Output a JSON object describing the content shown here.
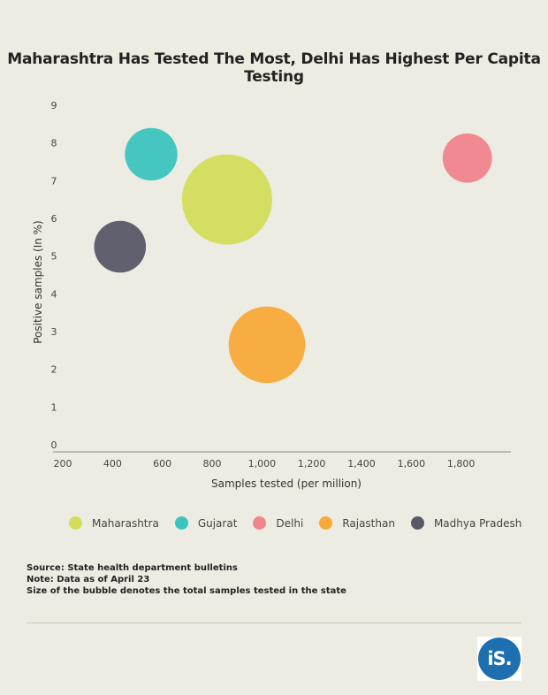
{
  "chart_data": {
    "type": "bubble",
    "title": "Maharashtra Has Tested The Most, Delhi Has Highest Per Capita Testing",
    "xlabel": "Samples tested (per million)",
    "ylabel": "Positive samples (In %)",
    "xlim": [
      200,
      2000
    ],
    "ylim": [
      0,
      9
    ],
    "x_ticks": [
      "200",
      "400",
      "600",
      "800",
      "1,000",
      "1,200",
      "1,400",
      "1,600",
      "1,800"
    ],
    "y_ticks": [
      "0",
      "1",
      "2",
      "3",
      "4",
      "5",
      "6",
      "7",
      "8",
      "9"
    ],
    "grid": false,
    "legend_position": "bottom",
    "series": [
      {
        "name": "Maharashtra",
        "x": 860,
        "y": 6.5,
        "size": 100,
        "color": "#d3dd5a"
      },
      {
        "name": "Gujarat",
        "x": 555,
        "y": 7.7,
        "size": 34,
        "color": "#3cc4bf"
      },
      {
        "name": "Delhi",
        "x": 1825,
        "y": 7.6,
        "size": 30,
        "color": "#f0848d"
      },
      {
        "name": "Rajasthan",
        "x": 1020,
        "y": 2.65,
        "size": 72,
        "color": "#f8aa38"
      },
      {
        "name": "Madhya Pradesh",
        "x": 430,
        "y": 5.25,
        "size": 33,
        "color": "#595867"
      }
    ]
  },
  "notes": {
    "source": "Source: State health department bulletins",
    "note": "Note: Data as of April 23",
    "size": "Size of the bubble denotes the total samples tested in the state"
  },
  "logo": {
    "text": "iS."
  }
}
